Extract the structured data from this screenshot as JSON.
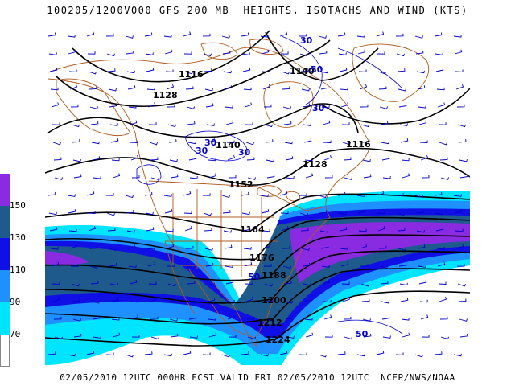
{
  "title": "100205/1200V000 GFS 200 MB  HEIGHTS, ISOTACHS AND WIND (KTS)",
  "footer": "02/05/2010 12UTC 000HR FCST VALID FRI 02/05/2010 12UTC  NCEP/NWS/NOAA",
  "colorbar": {
    "labels": [
      "150",
      "130",
      "110",
      "90",
      "70"
    ],
    "colors": [
      "#8a2be2",
      "#1e5a8c",
      "#1010e6",
      "#1e90ff",
      "#00e5ff",
      "#ffffff"
    ]
  },
  "height_labels": [
    "1116",
    "1128",
    "1140",
    "1140",
    "1116",
    "1128",
    "1152",
    "1164",
    "1176",
    "1188",
    "1200",
    "1212",
    "1224"
  ],
  "isotach_labels": [
    "30",
    "30",
    "30",
    "30",
    "30",
    "50",
    "50",
    "50"
  ],
  "colors": {
    "map": "#b05a1e",
    "height_contour": "#000000",
    "isotach_contour": "#0000cc",
    "wind_barb": "#0000cc"
  }
}
